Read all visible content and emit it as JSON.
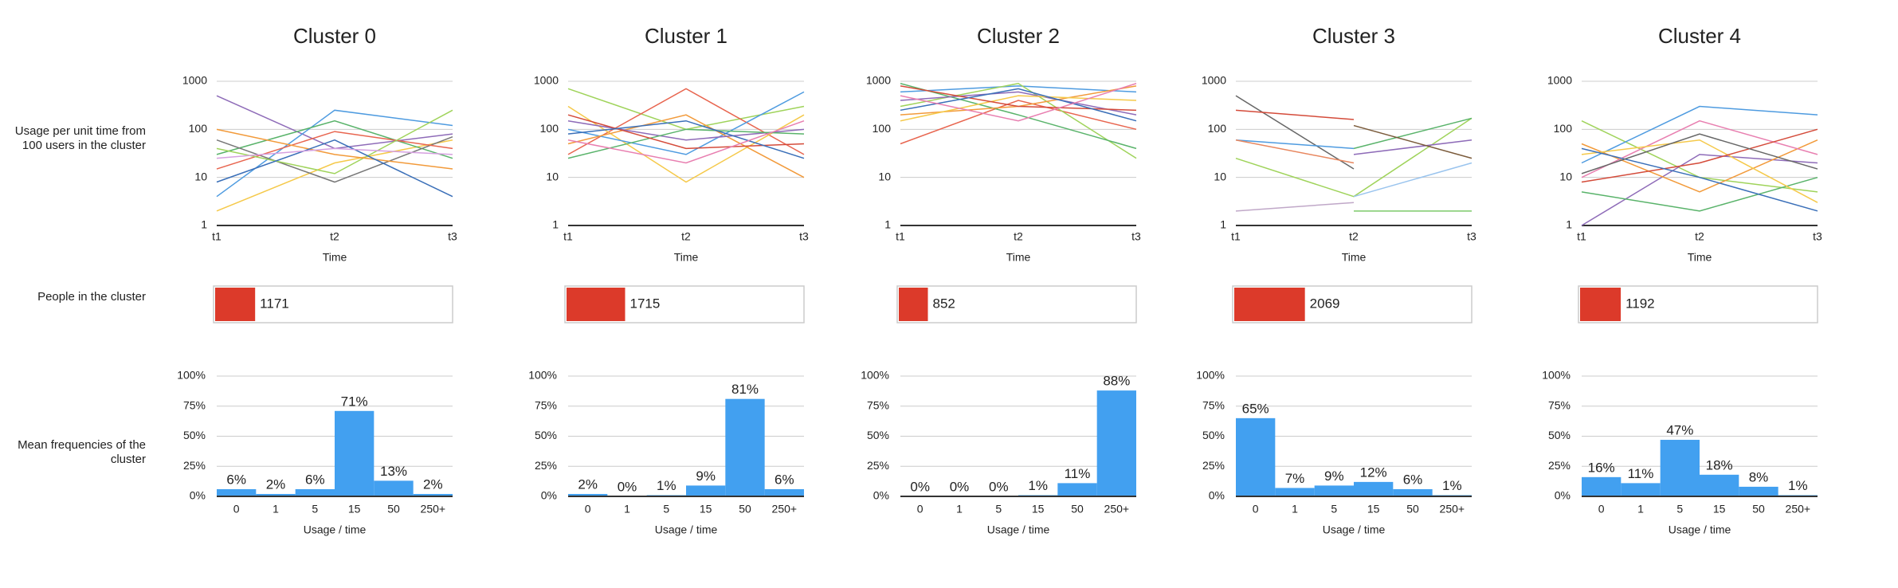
{
  "row_labels": [
    "Usage per unit time from 100 users in the cluster",
    "People in the cluster",
    "Mean frequencies of the cluster"
  ],
  "chart_data": [
    {
      "type": "line",
      "title": "Cluster 0",
      "x_label": "Time",
      "categories": [
        "t1",
        "t2",
        "t3"
      ],
      "log_scale": true,
      "grid": true,
      "ylim": [
        1,
        1000
      ],
      "yticks": [
        1,
        10,
        100,
        1000
      ],
      "series": [
        {
          "color": "#8e6bb8",
          "values": [
            500,
            40,
            80
          ]
        },
        {
          "color": "#4e9be0",
          "values": [
            4,
            250,
            120
          ]
        },
        {
          "color": "#f5c94a",
          "values": [
            2,
            20,
            60
          ]
        },
        {
          "color": "#59b36a",
          "values": [
            30,
            150,
            25
          ]
        },
        {
          "color": "#777777",
          "values": [
            60,
            8,
            70
          ]
        },
        {
          "color": "#e8654f",
          "values": [
            15,
            90,
            40
          ]
        },
        {
          "color": "#9fd35a",
          "values": [
            40,
            12,
            250
          ]
        },
        {
          "color": "#f29a3a",
          "values": [
            100,
            30,
            15
          ]
        },
        {
          "color": "#3a6fb8",
          "values": [
            8,
            60,
            4
          ]
        },
        {
          "color": "#d6a0e0",
          "values": [
            25,
            40,
            30
          ]
        }
      ]
    },
    {
      "type": "hbar",
      "value": 1171,
      "xlim": [
        0,
        7000
      ],
      "color": "#dc3a2a"
    },
    {
      "type": "bar",
      "x_label": "Usage / time",
      "categories": [
        "0",
        "1",
        "5",
        "15",
        "50",
        "250+"
      ],
      "color": "#42a0f0",
      "grid": true,
      "values": [
        6,
        2,
        6,
        71,
        13,
        2
      ],
      "value_labels": [
        "6%",
        "2%",
        "6%",
        "71%",
        "13%",
        "2%"
      ],
      "ylim": [
        0,
        100
      ],
      "yticks": [
        {
          "value": 0,
          "label": "0%"
        },
        {
          "value": 25,
          "label": "25%"
        },
        {
          "value": 50,
          "label": "50%"
        },
        {
          "value": 75,
          "label": "75%"
        },
        {
          "value": 100,
          "label": "100%"
        }
      ]
    },
    {
      "type": "line",
      "title": "Cluster 1",
      "x_label": "Time",
      "categories": [
        "t1",
        "t2",
        "t3"
      ],
      "log_scale": true,
      "grid": true,
      "ylim": [
        1,
        1000
      ],
      "yticks": [
        1,
        10,
        100,
        1000
      ],
      "series": [
        {
          "color": "#9fd35a",
          "values": [
            700,
            100,
            300
          ]
        },
        {
          "color": "#e8654f",
          "values": [
            30,
            700,
            30
          ]
        },
        {
          "color": "#f5c94a",
          "values": [
            300,
            8,
            200
          ]
        },
        {
          "color": "#4e9be0",
          "values": [
            100,
            30,
            600
          ]
        },
        {
          "color": "#f29a3a",
          "values": [
            50,
            200,
            10
          ]
        },
        {
          "color": "#8e6bb8",
          "values": [
            150,
            60,
            100
          ]
        },
        {
          "color": "#59b36a",
          "values": [
            25,
            100,
            80
          ]
        },
        {
          "color": "#d44b3a",
          "values": [
            200,
            40,
            50
          ]
        },
        {
          "color": "#3a6fb8",
          "values": [
            80,
            150,
            25
          ]
        },
        {
          "color": "#e87fb0",
          "values": [
            60,
            20,
            150
          ]
        }
      ]
    },
    {
      "type": "hbar",
      "value": 1715,
      "xlim": [
        0,
        7000
      ],
      "color": "#dc3a2a"
    },
    {
      "type": "bar",
      "x_label": "Usage / time",
      "categories": [
        "0",
        "1",
        "5",
        "15",
        "50",
        "250+"
      ],
      "color": "#42a0f0",
      "grid": true,
      "values": [
        2,
        0,
        1,
        9,
        81,
        6
      ],
      "value_labels": [
        "2%",
        "0%",
        "1%",
        "9%",
        "81%",
        "6%"
      ],
      "ylim": [
        0,
        100
      ],
      "yticks": [
        {
          "value": 0,
          "label": "0%"
        },
        {
          "value": 25,
          "label": "25%"
        },
        {
          "value": 50,
          "label": "50%"
        },
        {
          "value": 75,
          "label": "75%"
        },
        {
          "value": 100,
          "label": "100%"
        }
      ]
    },
    {
      "type": "line",
      "title": "Cluster 2",
      "x_label": "Time",
      "categories": [
        "t1",
        "t2",
        "t3"
      ],
      "log_scale": true,
      "grid": true,
      "ylim": [
        1,
        1000
      ],
      "yticks": [
        1,
        10,
        100,
        1000
      ],
      "series": [
        {
          "color": "#e8654f",
          "values": [
            50,
            400,
            100
          ]
        },
        {
          "color": "#4e9be0",
          "values": [
            600,
            800,
            600
          ]
        },
        {
          "color": "#9fd35a",
          "values": [
            300,
            900,
            25
          ]
        },
        {
          "color": "#59b36a",
          "values": [
            900,
            200,
            40
          ]
        },
        {
          "color": "#f29a3a",
          "values": [
            200,
            300,
            800
          ]
        },
        {
          "color": "#8e6bb8",
          "values": [
            400,
            600,
            200
          ]
        },
        {
          "color": "#f5c94a",
          "values": [
            150,
            500,
            400
          ]
        },
        {
          "color": "#d44b3a",
          "values": [
            800,
            300,
            250
          ]
        },
        {
          "color": "#3a6fb8",
          "values": [
            250,
            700,
            150
          ]
        },
        {
          "color": "#e87fb0",
          "values": [
            500,
            150,
            900
          ]
        }
      ]
    },
    {
      "type": "hbar",
      "value": 852,
      "xlim": [
        0,
        7000
      ],
      "color": "#dc3a2a"
    },
    {
      "type": "bar",
      "x_label": "Usage / time",
      "categories": [
        "0",
        "1",
        "5",
        "15",
        "50",
        "250+"
      ],
      "color": "#42a0f0",
      "grid": true,
      "values": [
        0,
        0,
        0,
        1,
        11,
        88
      ],
      "value_labels": [
        "0%",
        "0%",
        "0%",
        "1%",
        "11%",
        "88%"
      ],
      "ylim": [
        0,
        100
      ],
      "yticks": [
        {
          "value": 0,
          "label": "0%"
        },
        {
          "value": 25,
          "label": "25%"
        },
        {
          "value": 50,
          "label": "50%"
        },
        {
          "value": 75,
          "label": "75%"
        },
        {
          "value": 100,
          "label": "100%"
        }
      ]
    },
    {
      "type": "line",
      "title": "Cluster 3",
      "x_label": "Time",
      "categories": [
        "t1",
        "t2",
        "t3"
      ],
      "log_scale": true,
      "grid": true,
      "ylim": [
        1,
        1000
      ],
      "yticks": [
        1,
        10,
        100,
        1000
      ],
      "series": [
        {
          "color": "#666666",
          "values": [
            500,
            15,
            null
          ]
        },
        {
          "color": "#d44b3a",
          "values": [
            250,
            160,
            null
          ]
        },
        {
          "color": "#4e9be0",
          "values": [
            60,
            40,
            null
          ]
        },
        {
          "color": "#e8875f",
          "values": [
            60,
            20,
            null
          ]
        },
        {
          "color": "#c0a8c8",
          "values": [
            2,
            3,
            null
          ]
        },
        {
          "color": "#9fd35a",
          "values": [
            25,
            4,
            170
          ]
        },
        {
          "color": "#59b36a",
          "values": [
            null,
            40,
            170
          ]
        },
        {
          "color": "#7cc96a",
          "values": [
            null,
            2,
            2
          ]
        },
        {
          "color": "#9ac4ee",
          "values": [
            null,
            4,
            20
          ]
        },
        {
          "color": "#8e6bb8",
          "values": [
            null,
            30,
            60
          ]
        },
        {
          "color": "#7a5a3a",
          "values": [
            null,
            120,
            25
          ]
        }
      ]
    },
    {
      "type": "hbar",
      "value": 2069,
      "xlim": [
        0,
        7000
      ],
      "color": "#dc3a2a"
    },
    {
      "type": "bar",
      "x_label": "Usage / time",
      "categories": [
        "0",
        "1",
        "5",
        "15",
        "50",
        "250+"
      ],
      "color": "#42a0f0",
      "grid": true,
      "values": [
        65,
        7,
        9,
        12,
        6,
        1
      ],
      "value_labels": [
        "65%",
        "7%",
        "9%",
        "12%",
        "6%",
        "1%"
      ],
      "ylim": [
        0,
        100
      ],
      "yticks": [
        {
          "value": 0,
          "label": "0%"
        },
        {
          "value": 25,
          "label": "25%"
        },
        {
          "value": 50,
          "label": "50%"
        },
        {
          "value": 75,
          "label": "75%"
        },
        {
          "value": 100,
          "label": "100%"
        }
      ]
    },
    {
      "type": "line",
      "title": "Cluster 4",
      "x_label": "Time",
      "categories": [
        "t1",
        "t2",
        "t3"
      ],
      "log_scale": true,
      "grid": true,
      "ylim": [
        1,
        1000
      ],
      "yticks": [
        1,
        10,
        100,
        1000
      ],
      "series": [
        {
          "color": "#9fd35a",
          "values": [
            150,
            10,
            5
          ]
        },
        {
          "color": "#4e9be0",
          "values": [
            20,
            300,
            200
          ]
        },
        {
          "color": "#8e6bb8",
          "values": [
            1,
            30,
            20
          ]
        },
        {
          "color": "#f29a3a",
          "values": [
            50,
            5,
            60
          ]
        },
        {
          "color": "#e87fb0",
          "values": [
            10,
            150,
            30
          ]
        },
        {
          "color": "#59b36a",
          "values": [
            5,
            2,
            10
          ]
        },
        {
          "color": "#f5c94a",
          "values": [
            30,
            60,
            3
          ]
        },
        {
          "color": "#d44b3a",
          "values": [
            8,
            20,
            100
          ]
        },
        {
          "color": "#3a6fb8",
          "values": [
            40,
            10,
            2
          ]
        },
        {
          "color": "#666666",
          "values": [
            12,
            80,
            15
          ]
        }
      ]
    },
    {
      "type": "hbar",
      "value": 1192,
      "xlim": [
        0,
        7000
      ],
      "color": "#dc3a2a"
    },
    {
      "type": "bar",
      "x_label": "Usage / time",
      "categories": [
        "0",
        "1",
        "5",
        "15",
        "50",
        "250+"
      ],
      "color": "#42a0f0",
      "grid": true,
      "values": [
        16,
        11,
        47,
        18,
        8,
        1
      ],
      "value_labels": [
        "16%",
        "11%",
        "47%",
        "18%",
        "8%",
        "1%"
      ],
      "ylim": [
        0,
        100
      ],
      "yticks": [
        {
          "value": 0,
          "label": "0%"
        },
        {
          "value": 25,
          "label": "25%"
        },
        {
          "value": 50,
          "label": "50%"
        },
        {
          "value": 75,
          "label": "75%"
        },
        {
          "value": 100,
          "label": "100%"
        }
      ]
    }
  ]
}
